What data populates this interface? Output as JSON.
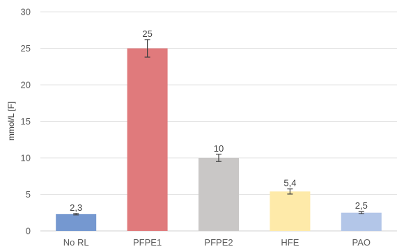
{
  "chart_data": {
    "type": "bar",
    "title": "",
    "xlabel": "",
    "ylabel": "mmol/L [F]",
    "categories": [
      "No RL",
      "PFPE1",
      "PFPE2",
      "HFE",
      "PAO"
    ],
    "values": [
      2.3,
      25,
      10,
      5.4,
      2.5
    ],
    "data_labels": [
      "2,3",
      "25",
      "10",
      "5,4",
      "2,5"
    ],
    "error_bars": [
      {
        "low": 2.2,
        "high": 2.4
      },
      {
        "low": 23.8,
        "high": 26.2
      },
      {
        "low": 9.5,
        "high": 10.5
      },
      {
        "low": 5.05,
        "high": 5.75
      },
      {
        "low": 2.35,
        "high": 2.65
      }
    ],
    "colors": [
      "#7598d0",
      "#e07a7c",
      "#c9c7c6",
      "#feeaa9",
      "#b3c6e8"
    ],
    "error_color": "#404040",
    "gridline_color": "#e3e3e3",
    "ylim": [
      0,
      30
    ],
    "yticks": [
      0,
      5,
      10,
      15,
      20,
      25,
      30
    ],
    "grid": true,
    "legend": "none"
  }
}
